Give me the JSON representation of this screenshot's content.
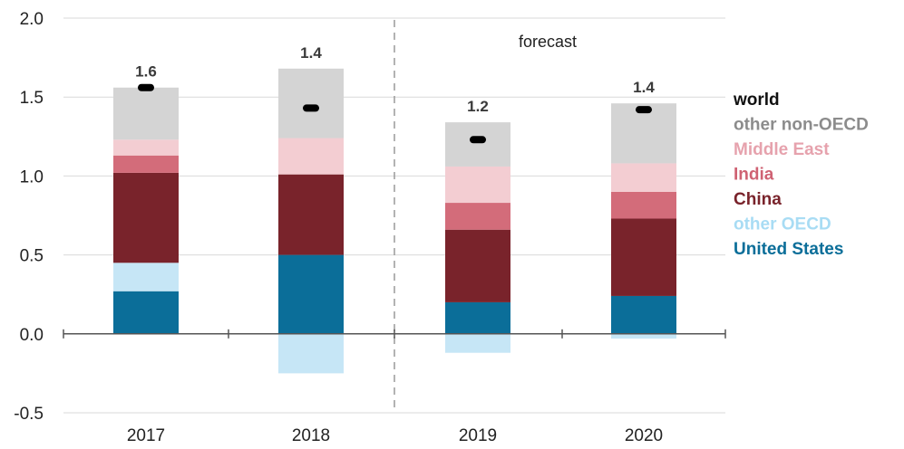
{
  "chart_data": {
    "type": "bar",
    "stacked": true,
    "categories": [
      "2017",
      "2018",
      "2019",
      "2020"
    ],
    "ylim": [
      -0.5,
      2.0
    ],
    "yticks": [
      "-0.5",
      "0.0",
      "0.5",
      "1.0",
      "1.5",
      "2.0"
    ],
    "annotation": "forecast",
    "series": [
      {
        "name": "United States",
        "color": "#0b6e99",
        "values": [
          0.27,
          0.5,
          0.2,
          0.24
        ]
      },
      {
        "name": "other OECD",
        "color": "#c6e6f6",
        "values": [
          0.18,
          -0.25,
          -0.12,
          -0.03
        ]
      },
      {
        "name": "China",
        "color": "#79232b",
        "values": [
          0.57,
          0.51,
          0.46,
          0.49
        ]
      },
      {
        "name": "India",
        "color": "#d36c7a",
        "values": [
          0.11,
          0.0,
          0.17,
          0.17
        ]
      },
      {
        "name": "Middle East",
        "color": "#f3cdd2",
        "values": [
          0.1,
          0.23,
          0.23,
          0.18
        ]
      },
      {
        "name": "other non-OECD",
        "color": "#d4d4d4",
        "values": [
          0.33,
          0.44,
          0.28,
          0.38
        ]
      }
    ],
    "world": {
      "name": "world",
      "color": "#000000",
      "values": [
        1.56,
        1.43,
        1.23,
        1.42
      ]
    },
    "totals": [
      "1.6",
      "1.4",
      "1.2",
      "1.4"
    ],
    "legend": [
      {
        "label": "world",
        "color": "#111111"
      },
      {
        "label": "other non-OECD",
        "color": "#8c8c8c"
      },
      {
        "label": "Middle East",
        "color": "#e6a2ad"
      },
      {
        "label": "India",
        "color": "#cf6273"
      },
      {
        "label": "China",
        "color": "#79232b"
      },
      {
        "label": "other OECD",
        "color": "#a8dcf4"
      },
      {
        "label": "United States",
        "color": "#0b6e99"
      }
    ]
  }
}
